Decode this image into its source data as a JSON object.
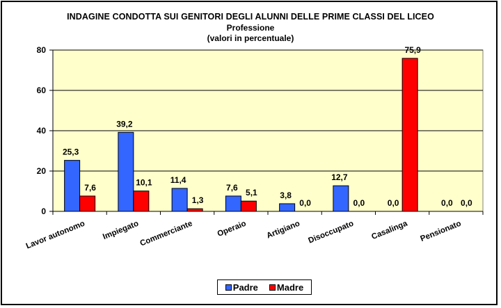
{
  "chart_data": {
    "type": "bar",
    "title": "INDAGINE CONDOTTA  SUI GENITORI DEGLI ALUNNI DELLE PRIME CLASSI DEL LICEO",
    "subtitle": "Professione",
    "subtitle2": "(valori in percentuale)",
    "xlabel": "",
    "ylabel": "",
    "ylim": [
      0,
      80
    ],
    "yticks": [
      0,
      20,
      40,
      60,
      80
    ],
    "grid": true,
    "legend_position": "bottom",
    "plot_background": "#FFFFCC",
    "categories": [
      "Lavor autonomo",
      "Impiegato",
      "Commerciante",
      "Operaio",
      "Artigiano",
      "Disoccupato",
      "Casalinga",
      "Pensionato"
    ],
    "series": [
      {
        "name": "Padre",
        "color": "#3366FF",
        "values": [
          25.3,
          39.2,
          11.4,
          7.6,
          3.8,
          12.7,
          0.0,
          0.0
        ],
        "labels": [
          "25,3",
          "39,2",
          "11,4",
          "7,6",
          "3,8",
          "12,7",
          "0,0",
          "0,0"
        ]
      },
      {
        "name": "Madre",
        "color": "#FF0000",
        "values": [
          7.6,
          10.1,
          1.3,
          5.1,
          0.0,
          0.0,
          75.9,
          0.0
        ],
        "labels": [
          "7,6",
          "10,1",
          "1,3",
          "5,1",
          "0,0",
          "0,0",
          "75,9",
          "0,0"
        ]
      }
    ]
  },
  "legend": {
    "padre": "Padre",
    "madre": "Madre"
  }
}
